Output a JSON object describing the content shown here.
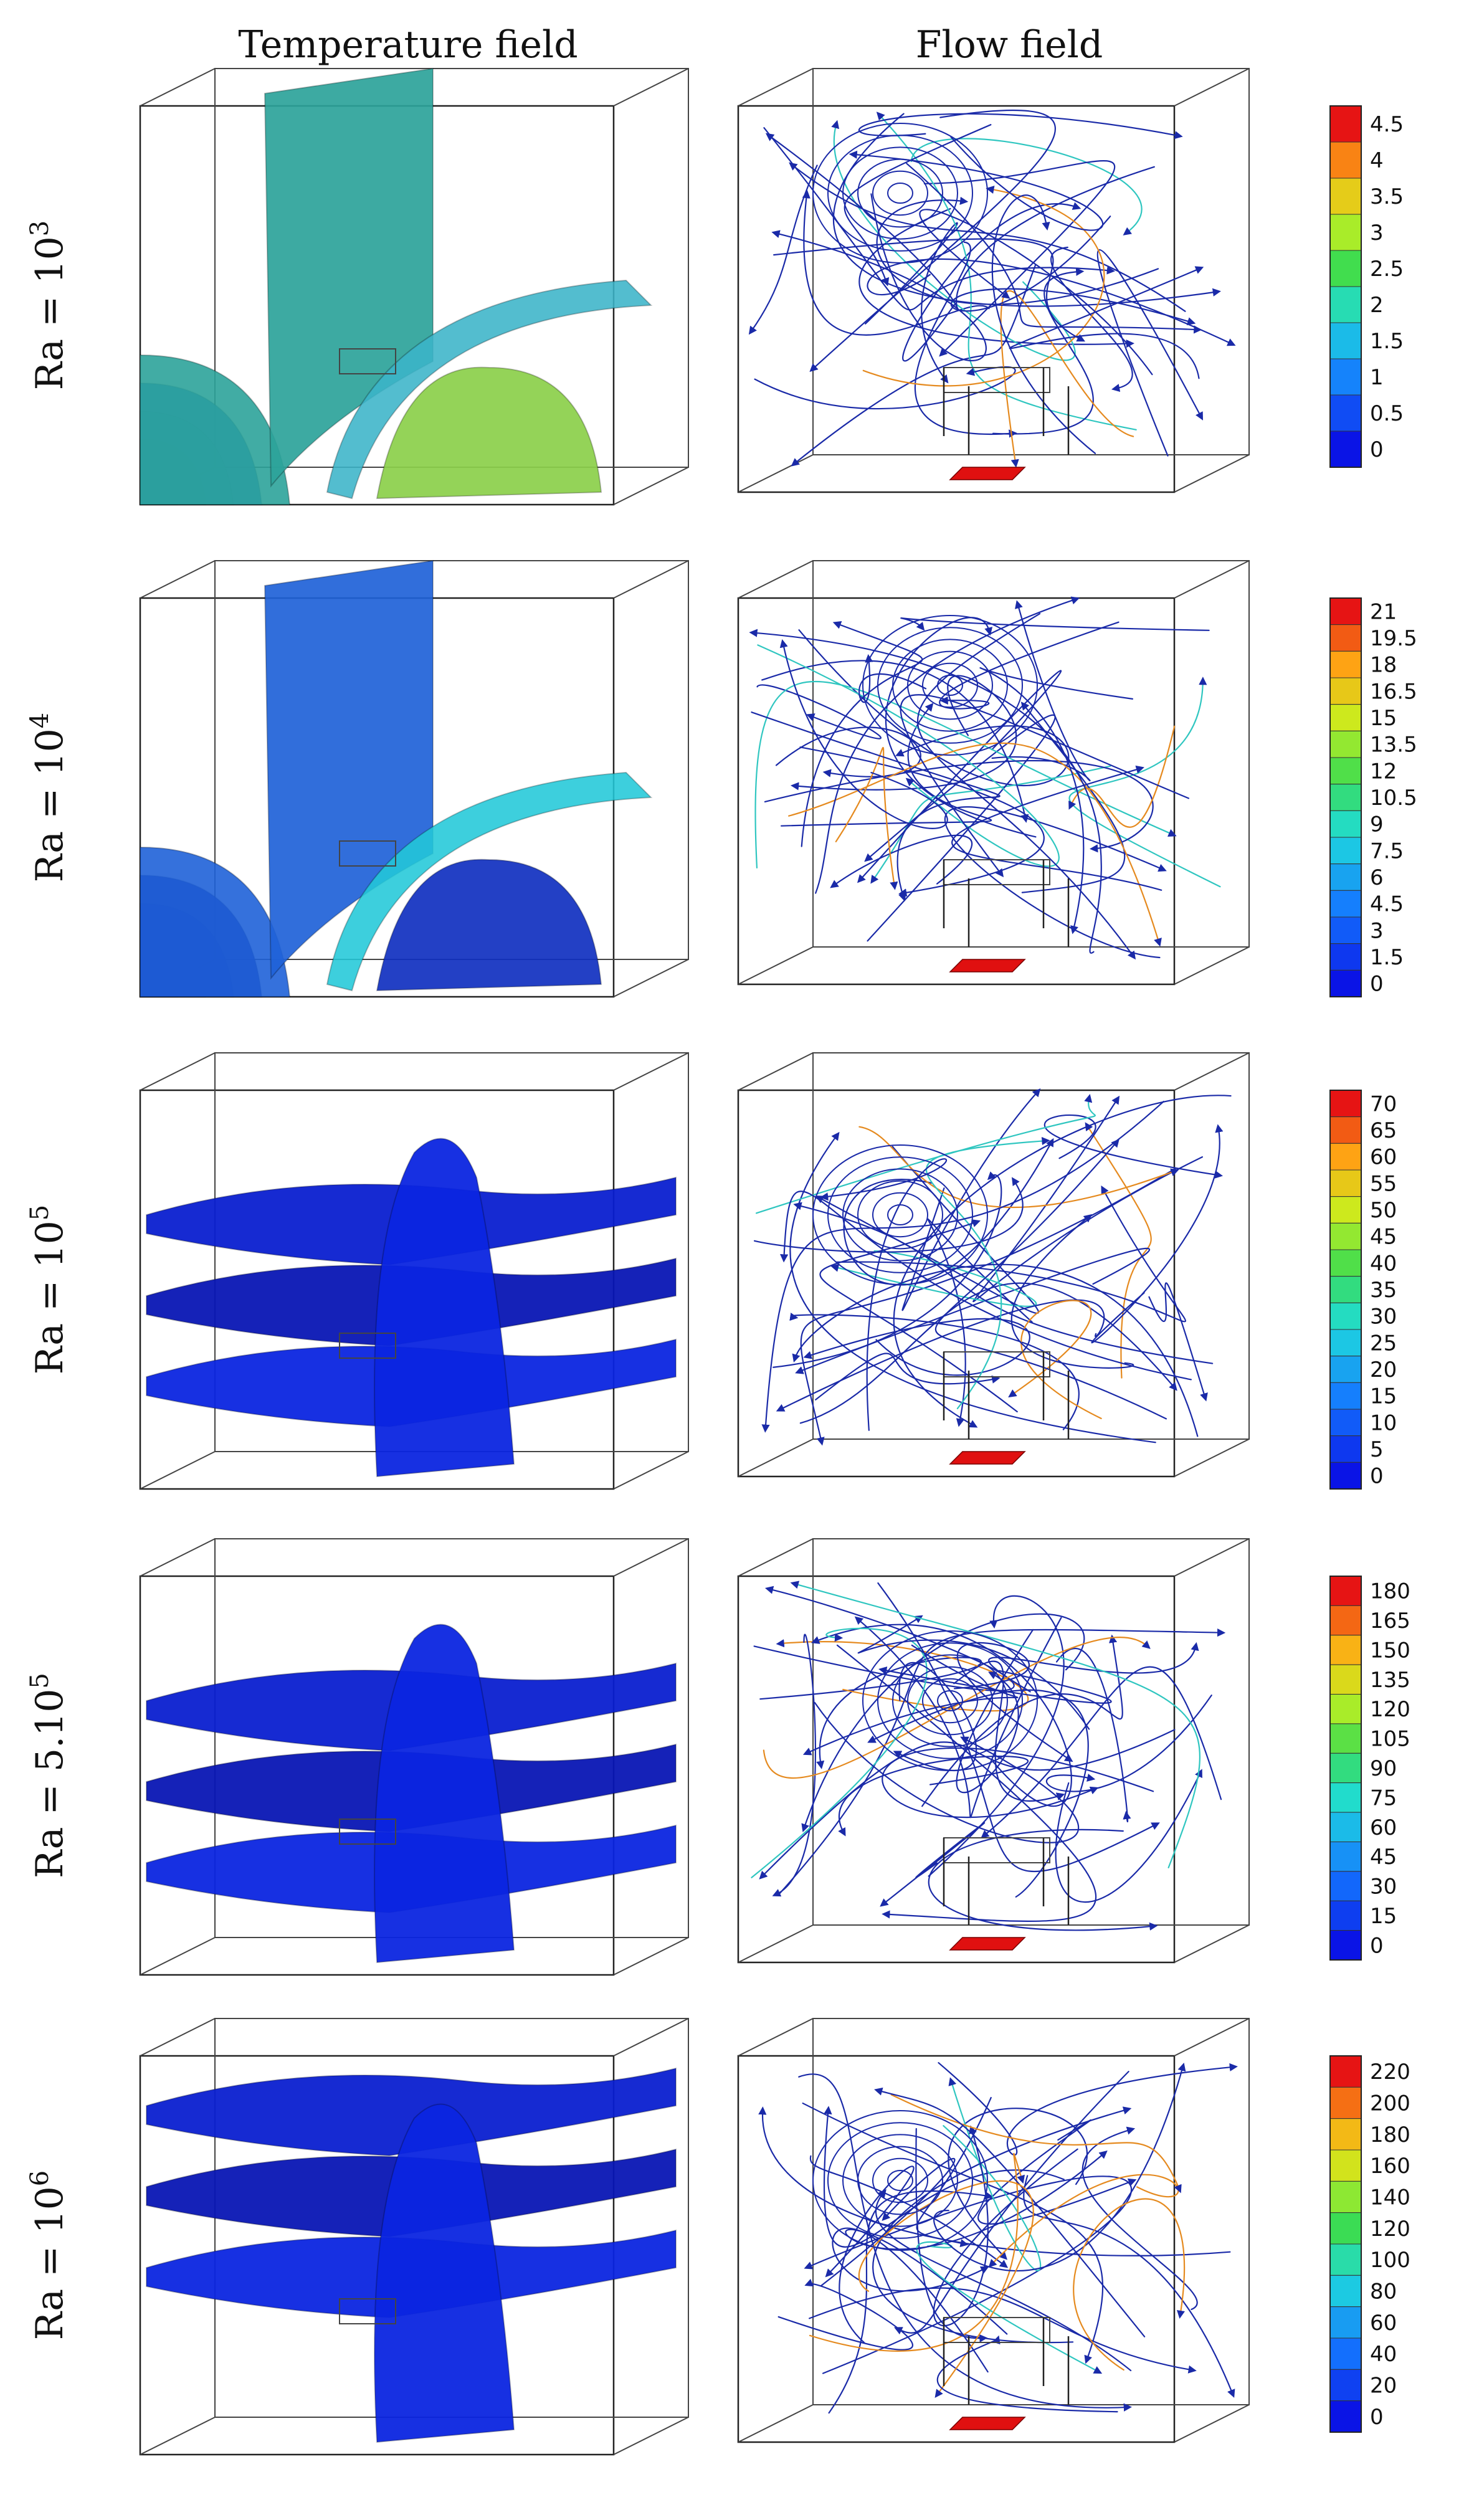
{
  "columns": {
    "left_title": "Temperature field",
    "right_title": "Flow field"
  },
  "rows": [
    {
      "label": "Ra = 10",
      "exponent": "3",
      "iso_colors": [
        "#2ca39a",
        "#19b4ad",
        "#3bb4c8",
        "#8bcf4a",
        "#1b6fd0"
      ],
      "colorbar": {
        "ticks": [
          "4.5",
          "4",
          "3.5",
          "3",
          "2.5",
          "2",
          "1.5",
          "1",
          "0.5",
          "0"
        ]
      }
    },
    {
      "label": "Ra = 10",
      "exponent": "4",
      "iso_colors": [
        "#1f62d8",
        "#2a8ed8",
        "#22c8d8",
        "#1030c0",
        "#0a1a9a"
      ],
      "colorbar": {
        "ticks": [
          "21",
          "19.5",
          "18",
          "16.5",
          "15",
          "13.5",
          "12",
          "10.5",
          "9",
          "7.5",
          "6",
          "4.5",
          "3",
          "1.5",
          "0"
        ]
      }
    },
    {
      "label": "Ra = 10",
      "exponent": "5",
      "iso_colors": [
        "#0a1fd0",
        "#0816b4",
        "#0b25e0",
        "#0a1290",
        "#1030e8"
      ],
      "colorbar": {
        "ticks": [
          "70",
          "65",
          "60",
          "55",
          "50",
          "45",
          "40",
          "35",
          "30",
          "25",
          "20",
          "15",
          "10",
          "5",
          "0"
        ]
      }
    },
    {
      "label": "Ra = 5.10",
      "exponent": "5",
      "iso_colors": [
        "#0a1fd0",
        "#0816b4",
        "#0b25e0",
        "#0a1290",
        "#1030e8"
      ],
      "colorbar": {
        "ticks": [
          "180",
          "165",
          "150",
          "135",
          "120",
          "105",
          "90",
          "75",
          "60",
          "45",
          "30",
          "15",
          "0"
        ]
      }
    },
    {
      "label": "Ra = 10",
      "exponent": "6",
      "iso_colors": [
        "#0a1fd0",
        "#0816b4",
        "#0b25e0",
        "#0a1290",
        "#1030e8"
      ],
      "colorbar": {
        "ticks": [
          "220",
          "200",
          "180",
          "160",
          "140",
          "120",
          "100",
          "80",
          "60",
          "40",
          "20",
          "0"
        ]
      }
    }
  ],
  "colors": {
    "heat_source": "#e01010",
    "streamline_base": "#1a2aa8"
  }
}
